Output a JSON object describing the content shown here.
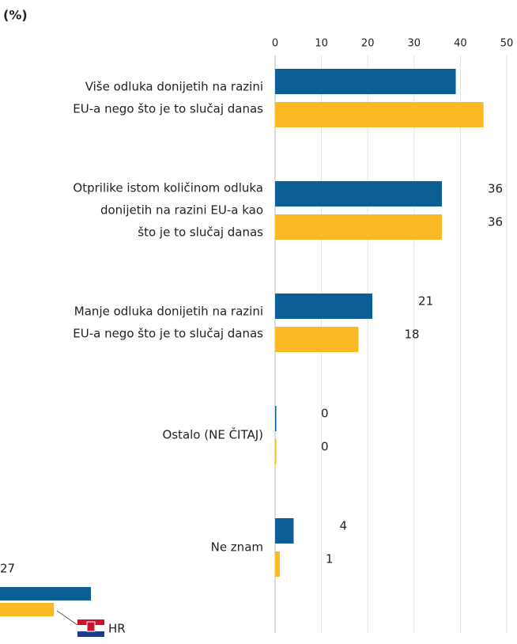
{
  "chart_data": {
    "type": "bar",
    "orientation": "horizontal",
    "unit_label": "(%)",
    "categories": [
      [
        "Više odluka donijetih na razini",
        "EU-a nego što je to slučaj danas"
      ],
      [
        "Otprilike istom količinom odluka",
        "donijetih na razini EU-a kao",
        "što je to slučaj danas"
      ],
      [
        "Manje odluka donijetih na razini",
        "EU-a nego što je to slučaj danas"
      ],
      [
        "Ostalo (NE ČITAJ)"
      ],
      [
        "Ne znam"
      ]
    ],
    "series": [
      {
        "color": "#0b5f94",
        "values": [
          39,
          36,
          21,
          0,
          4
        ],
        "value_labels": [
          null,
          "36",
          "21",
          "0",
          "4"
        ]
      },
      {
        "color": "#fbb924",
        "values": [
          45,
          36,
          18,
          0,
          1
        ],
        "value_labels": [
          null,
          "36",
          "18",
          "0",
          "1"
        ]
      }
    ],
    "xlim": [
      0,
      50
    ],
    "xticks": [
      0,
      10,
      20,
      30,
      40,
      50
    ],
    "grid": true,
    "inset": {
      "values": [
        27,
        16
      ],
      "value_labels": [
        "27",
        null
      ],
      "legend": "HR"
    }
  }
}
